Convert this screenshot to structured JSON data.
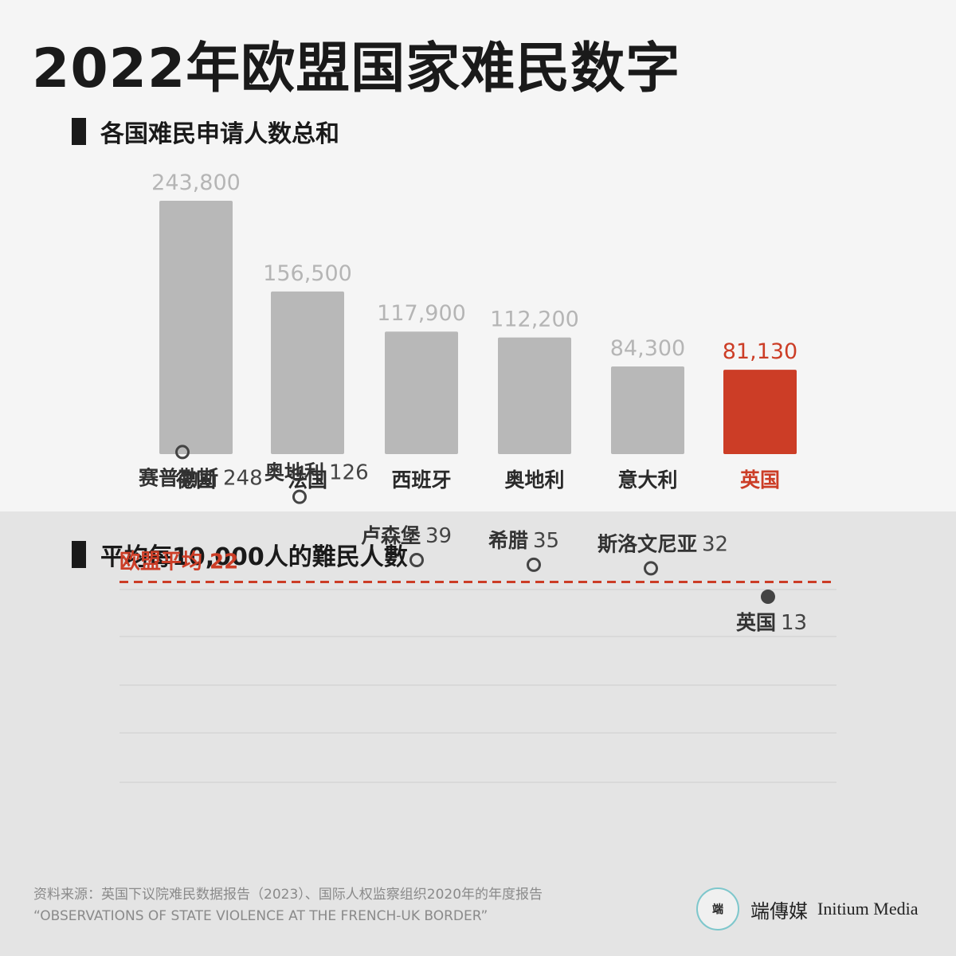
{
  "title": "2022年欧盟国家难民数字",
  "chart_data": [
    {
      "type": "bar",
      "title": "各国难民申请人数总和",
      "categories": [
        "德国",
        "法国",
        "西班牙",
        "奥地利",
        "意大利",
        "英国"
      ],
      "values": [
        243800,
        156500,
        117900,
        112200,
        84300,
        81130
      ],
      "value_labels": [
        "243,800",
        "156,500",
        "117,900",
        "112,200",
        "84,300",
        "81,130"
      ],
      "highlight": "英国",
      "colors": {
        "default": "#b8b8b8",
        "highlight": "#cc3d26"
      },
      "ylim": [
        0,
        243800
      ]
    },
    {
      "type": "scatter",
      "title": "平均每10,000人的難民人數",
      "points": [
        {
          "label": "赛普勒斯",
          "value": 248
        },
        {
          "label": "奥地利",
          "value": 126
        },
        {
          "label": "卢森堡",
          "value": 39
        },
        {
          "label": "希腊",
          "value": 35
        },
        {
          "label": "斯洛文尼亚",
          "value": 32
        },
        {
          "label": "英国",
          "value": 13
        }
      ],
      "highlight": "英国",
      "reference_line": {
        "label": "欧盟平均 22",
        "value": 22
      },
      "colors": {
        "reference": "#cc3d26",
        "marker": "#444444"
      }
    }
  ],
  "source": {
    "line1": "资料来源：英国下议院难民数据报告（2023）、国际人权监察组织2020年的年度报告",
    "line2": "“OBSERVATIONS OF STATE VIOLENCE AT THE FRENCH-UK BORDER”"
  },
  "logo": {
    "mark": "端",
    "cn": "端傳媒",
    "en": "Initium Media"
  }
}
